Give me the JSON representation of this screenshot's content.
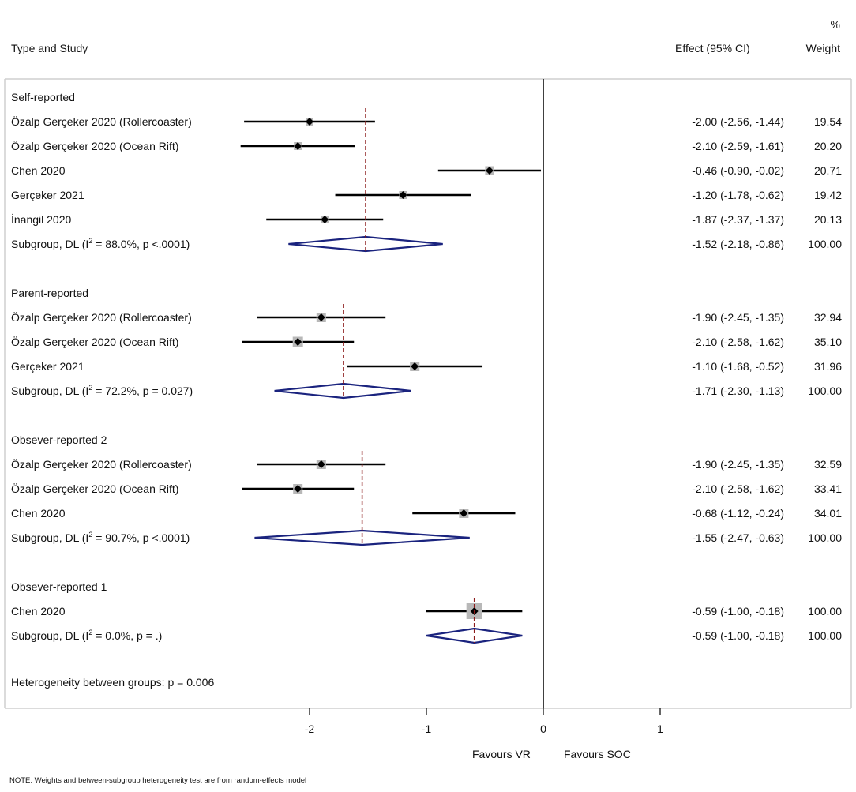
{
  "chart_data": {
    "type": "forest",
    "headers": {
      "study": "Type and Study",
      "effect": "Effect (95% CI)",
      "weight_pct": "%",
      "weight": "Weight"
    },
    "x_axis": {
      "range": [
        -2.6,
        2.6
      ],
      "ticks": [
        -2,
        -1,
        0,
        1
      ],
      "tick_labels": [
        "-2",
        "-1",
        "0",
        "1"
      ]
    },
    "favours_left": "Favours VR",
    "favours_right": "Favours SOC",
    "groups": [
      {
        "label": "Self-reported",
        "studies": [
          {
            "name": "Özalp Gerçeker 2020 (Rollercoaster)",
            "est": -2.0,
            "lo": -2.56,
            "hi": -1.44,
            "effect_text": "-2.00 (-2.56, -1.44)",
            "weight": "19.54",
            "box": 10
          },
          {
            "name": "Özalp Gerçeker 2020 (Ocean Rift)",
            "est": -2.1,
            "lo": -2.59,
            "hi": -1.61,
            "effect_text": "-2.10 (-2.59, -1.61)",
            "weight": "20.20",
            "box": 10
          },
          {
            "name": "Chen 2020",
            "est": -0.46,
            "lo": -0.9,
            "hi": -0.02,
            "effect_text": "-0.46 (-0.90, -0.02)",
            "weight": "20.71",
            "box": 11
          },
          {
            "name": "Gerçeker 2021",
            "est": -1.2,
            "lo": -1.78,
            "hi": -0.62,
            "effect_text": "-1.20 (-1.78, -0.62)",
            "weight": "19.42",
            "box": 10
          },
          {
            "name": "İnangil 2020",
            "est": -1.87,
            "lo": -2.37,
            "hi": -1.37,
            "effect_text": "-1.87 (-2.37, -1.37)",
            "weight": "20.13",
            "box": 10
          }
        ],
        "subgroup": {
          "label_pre": "Subgroup, DL (I",
          "sup": "2",
          "label_post": " = 88.0%, p <.0001)",
          "est": -1.52,
          "lo": -2.18,
          "hi": -0.86,
          "effect_text": "-1.52 (-2.18, -0.86)",
          "weight": "100.00"
        }
      },
      {
        "label": "Parent-reported",
        "studies": [
          {
            "name": "Özalp Gerçeker 2020 (Rollercoaster)",
            "est": -1.9,
            "lo": -2.45,
            "hi": -1.35,
            "effect_text": "-1.90 (-2.45, -1.35)",
            "weight": "32.94",
            "box": 12
          },
          {
            "name": "Özalp Gerçeker 2020 (Ocean Rift)",
            "est": -2.1,
            "lo": -2.58,
            "hi": -1.62,
            "effect_text": "-2.10 (-2.58, -1.62)",
            "weight": "35.10",
            "box": 13
          },
          {
            "name": "Gerçeker 2021",
            "est": -1.1,
            "lo": -1.68,
            "hi": -0.52,
            "effect_text": "-1.10 (-1.68, -0.52)",
            "weight": "31.96",
            "box": 12
          }
        ],
        "subgroup": {
          "label_pre": "Subgroup, DL (I",
          "sup": "2",
          "label_post": " = 72.2%, p = 0.027)",
          "est": -1.71,
          "lo": -2.3,
          "hi": -1.13,
          "effect_text": "-1.71 (-2.30, -1.13)",
          "weight": "100.00"
        }
      },
      {
        "label": "Obsever-reported 2",
        "studies": [
          {
            "name": "Özalp Gerçeker 2020 (Rollercoaster)",
            "est": -1.9,
            "lo": -2.45,
            "hi": -1.35,
            "effect_text": "-1.90 (-2.45, -1.35)",
            "weight": "32.59",
            "box": 12
          },
          {
            "name": "Özalp Gerçeker 2020 (Ocean Rift)",
            "est": -2.1,
            "lo": -2.58,
            "hi": -1.62,
            "effect_text": "-2.10 (-2.58, -1.62)",
            "weight": "33.41",
            "box": 12
          },
          {
            "name": "Chen 2020",
            "est": -0.68,
            "lo": -1.12,
            "hi": -0.24,
            "effect_text": "-0.68 (-1.12, -0.24)",
            "weight": "34.01",
            "box": 12
          }
        ],
        "subgroup": {
          "label_pre": "Subgroup, DL (I",
          "sup": "2",
          "label_post": " = 90.7%, p <.0001)",
          "est": -1.55,
          "lo": -2.47,
          "hi": -0.63,
          "effect_text": "-1.55 (-2.47, -0.63)",
          "weight": "100.00"
        }
      },
      {
        "label": "Obsever-reported 1",
        "studies": [
          {
            "name": "Chen 2020",
            "est": -0.59,
            "lo": -1.0,
            "hi": -0.18,
            "effect_text": "-0.59 (-1.00, -0.18)",
            "weight": "100.00",
            "box": 20
          }
        ],
        "subgroup": {
          "label_pre": "Subgroup, DL (I",
          "sup": "2",
          "label_post": " = 0.0%, p = .)",
          "est": -0.59,
          "lo": -1.0,
          "hi": -0.18,
          "effect_text": "-0.59 (-1.00, -0.18)",
          "weight": "100.00"
        }
      }
    ],
    "heterogeneity": "Heterogeneity between groups: p = 0.006",
    "note": "NOTE: Weights and between-subgroup heterogeneity test are from random-effects model",
    "colors": {
      "diamond": "#1a237e",
      "ref_line": "#8b1a1a",
      "box": "#b8b8b8",
      "ci_line": "#000000",
      "frame": "#cfcfcf"
    }
  }
}
